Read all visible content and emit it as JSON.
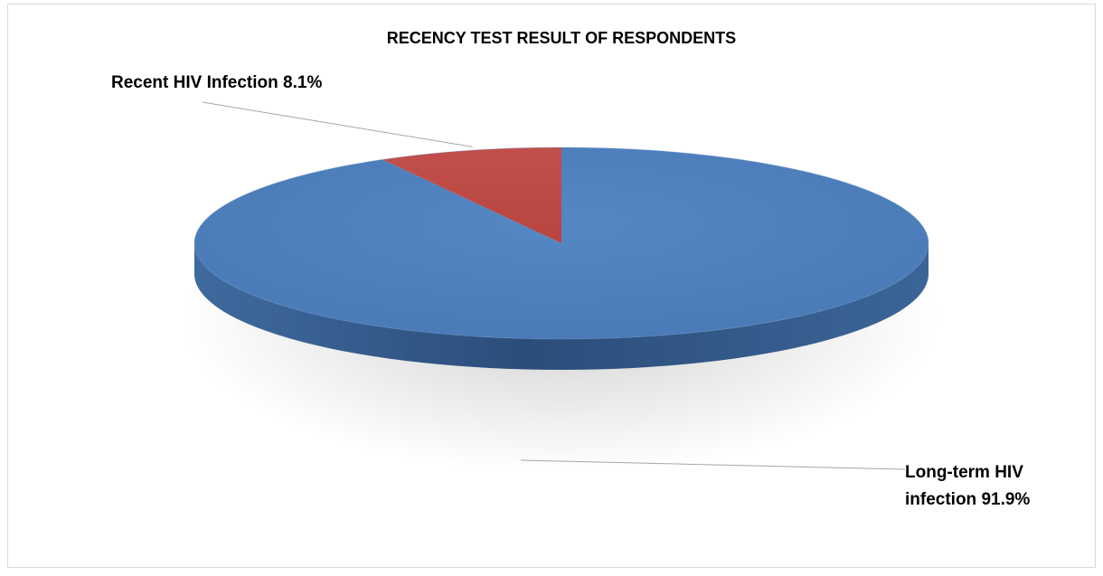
{
  "chart_data": {
    "type": "pie",
    "title": "RECENCY TEST RESULT OF RESPONDENTS",
    "style": "3d",
    "legend": "none",
    "slices": [
      {
        "label_lines": [
          "Recent HIV Infection 8.1%"
        ],
        "value": 8.1,
        "color": "#c0504d"
      },
      {
        "label_lines": [
          "Long-term HIV",
          "infection 91.9%"
        ],
        "value": 91.9,
        "color": "#4f81bd"
      }
    ]
  }
}
